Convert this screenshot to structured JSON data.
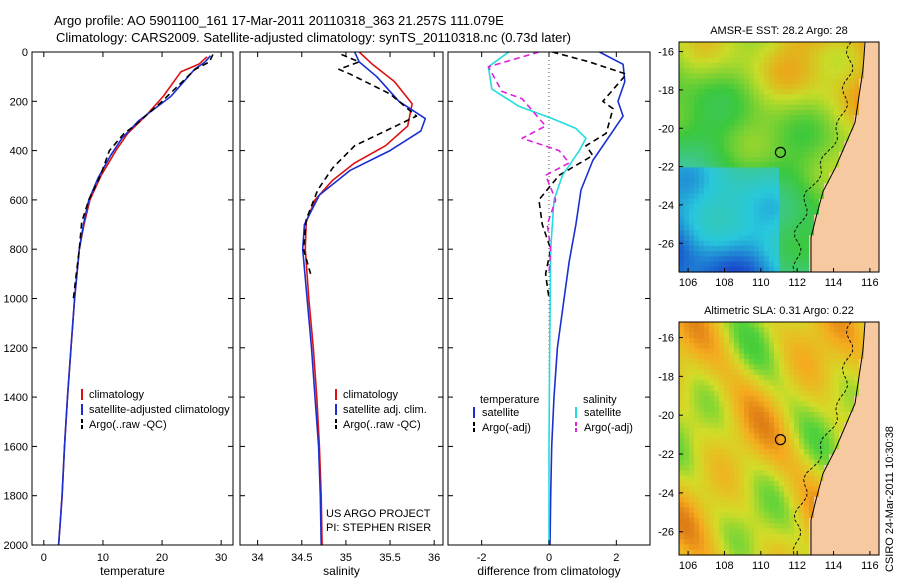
{
  "title_line1": "Argo profile: AO 5901100_161 17-Mar-2011 20110318_363 21.257S 111.079E",
  "title_line2": "Climatology: CARS2009. Satellite-adjusted climatology: synTS_20110318.nc (0.73d later)",
  "credit": "CSIRO 24-Mar-2011 10:30:38",
  "colors": {
    "climatology": "#dd1111",
    "satellite": "#1a2fd0",
    "argo": "#000000",
    "salinity_satellite": "#22dddd",
    "salinity_argo": "#dd22dd",
    "land": "#f7c9a0"
  },
  "chart_data": [
    {
      "type": "line",
      "id": "temperature",
      "xlabel": "temperature",
      "xlim": [
        -2,
        32
      ],
      "ylim": [
        2000,
        0
      ],
      "xticks": [
        0,
        10,
        20,
        30
      ],
      "yticks": [
        0,
        200,
        400,
        600,
        800,
        1000,
        1200,
        1400,
        1600,
        1800,
        2000
      ],
      "legend": [
        "climatology",
        "satellite-adjusted climatology",
        "Argo(..raw -QC)"
      ],
      "series": [
        {
          "name": "climatology",
          "style": "solid",
          "color": "#dd1111",
          "x": [
            27.6,
            26.2,
            23.2,
            20.2,
            17.2,
            14.2,
            12.2,
            9.7,
            7.8,
            6.8,
            6.0,
            5.2,
            4.6,
            4.0,
            3.5,
            3.1,
            2.8,
            2.5
          ],
          "y": [
            20,
            50,
            80,
            180,
            260,
            330,
            400,
            500,
            600,
            700,
            800,
            1000,
            1200,
            1400,
            1600,
            1800,
            1900,
            2000
          ]
        },
        {
          "name": "satellite-adjusted climatology",
          "style": "solid",
          "color": "#1a2fd0",
          "x": [
            28.2,
            27.3,
            25.5,
            21.5,
            16.0,
            13.2,
            11.3,
            9.2,
            7.6,
            6.7,
            6.0,
            5.2,
            4.6,
            4.0,
            3.5,
            3.1,
            2.8,
            2.5
          ],
          "y": [
            15,
            40,
            70,
            180,
            280,
            350,
            420,
            510,
            600,
            700,
            800,
            1000,
            1200,
            1400,
            1600,
            1800,
            1900,
            2000
          ]
        },
        {
          "name": "Argo(..raw -QC)",
          "style": "dashed",
          "color": "#000000",
          "x": [
            28.6,
            28.0,
            25.6,
            20.0,
            15.3,
            13.6,
            11.1,
            9.6,
            7.6,
            6.4,
            6.0,
            5.5,
            5.0
          ],
          "y": [
            10,
            40,
            70,
            200,
            300,
            330,
            400,
            500,
            600,
            690,
            800,
            900,
            1000
          ]
        }
      ]
    },
    {
      "type": "line",
      "id": "salinity",
      "xlabel": "salinity",
      "xlim": [
        33.8,
        36.1
      ],
      "ylim": [
        2000,
        0
      ],
      "xticks": [
        34,
        34.5,
        35,
        35.5,
        36
      ],
      "legend": [
        "climatology",
        "satellite adj. clim.",
        "Argo(..raw -QC)"
      ],
      "annotation": [
        "US ARGO PROJECT",
        "PI: STEPHEN RISER"
      ],
      "series": [
        {
          "name": "climatology",
          "style": "solid",
          "color": "#dd1111",
          "x": [
            35.15,
            35.3,
            35.55,
            35.75,
            35.7,
            35.45,
            35.1,
            34.85,
            34.65,
            34.55,
            34.54,
            34.58,
            34.63,
            34.67,
            34.7,
            34.72,
            34.73
          ],
          "y": [
            0,
            50,
            120,
            210,
            300,
            380,
            450,
            520,
            600,
            690,
            800,
            1000,
            1200,
            1400,
            1600,
            1800,
            2000
          ]
        },
        {
          "name": "satellite adj. clim.",
          "style": "solid",
          "color": "#1a2fd0",
          "x": [
            35.1,
            35.15,
            35.35,
            35.6,
            35.9,
            35.85,
            35.5,
            35.05,
            34.7,
            34.53,
            34.51,
            34.56,
            34.61,
            34.65,
            34.69,
            34.71,
            34.72
          ],
          "y": [
            0,
            40,
            100,
            200,
            270,
            320,
            400,
            480,
            580,
            700,
            800,
            1000,
            1200,
            1400,
            1600,
            1800,
            2000
          ]
        },
        {
          "name": "Argo(..raw -QC)",
          "style": "dashed",
          "color": "#000000",
          "x": [
            34.95,
            35.15,
            34.92,
            35.05,
            35.5,
            35.8,
            35.1,
            34.85,
            34.68,
            34.55,
            34.52,
            34.6
          ],
          "y": [
            10,
            40,
            70,
            90,
            170,
            260,
            380,
            470,
            560,
            680,
            800,
            900
          ]
        }
      ]
    },
    {
      "type": "line",
      "id": "difference",
      "xlabel": "difference from climatology",
      "xlim": [
        -3,
        3
      ],
      "ylim": [
        2000,
        0
      ],
      "xticks": [
        -2,
        0,
        2
      ],
      "legend": [
        "temperature",
        "satellite",
        "Argo(-adj)",
        "salinity",
        "satellite",
        "Argo(-adj)"
      ],
      "series": [
        {
          "name": "temperature satellite",
          "style": "solid",
          "color": "#1a2fd0",
          "x": [
            1.5,
            2.2,
            2.25,
            2.05,
            2.2,
            1.9,
            1.3,
            0.95,
            0.8,
            0.6,
            0.45,
            0.25,
            0.15,
            0.08,
            0.05,
            0.03
          ],
          "y": [
            0,
            50,
            120,
            200,
            260,
            320,
            440,
            560,
            700,
            850,
            1000,
            1200,
            1400,
            1600,
            1800,
            2000
          ]
        },
        {
          "name": "temperature Argo(-adj)",
          "style": "dashed",
          "color": "#000000",
          "x": [
            0.1,
            1.2,
            2.3,
            1.6,
            1.9,
            1.7,
            1.1,
            1.3,
            0.3,
            -0.3,
            -0.2,
            0.05,
            -0.1,
            0.0
          ],
          "y": [
            0,
            40,
            90,
            200,
            230,
            330,
            380,
            420,
            500,
            600,
            700,
            800,
            900,
            1000
          ]
        },
        {
          "name": "salinity satellite",
          "style": "solid",
          "color": "#22dddd",
          "x": [
            -1.2,
            -1.8,
            -1.7,
            -0.9,
            0.1,
            0.8,
            1.1,
            0.9,
            0.4,
            0.15,
            0.05,
            0.02,
            0.0,
            0.0
          ],
          "y": [
            0,
            60,
            150,
            220,
            270,
            310,
            350,
            400,
            500,
            600,
            800,
            1200,
            1600,
            2000
          ]
        },
        {
          "name": "salinity Argo(-adj)",
          "style": "dashed",
          "color": "#dd22dd",
          "x": [
            -0.3,
            -1.8,
            -1.4,
            -0.8,
            -0.1,
            -0.8,
            0.3,
            0.6,
            -0.1,
            0.2,
            -0.05,
            0.05,
            0.0
          ],
          "y": [
            0,
            60,
            160,
            190,
            300,
            350,
            400,
            450,
            500,
            600,
            700,
            800,
            900
          ]
        }
      ]
    },
    {
      "type": "heatmap",
      "id": "sst_map",
      "title": "AMSR-E SST: 28.2  Argo: 28",
      "xlim": [
        105.5,
        116.5
      ],
      "ylim": [
        -27.5,
        -15.5
      ],
      "xticks": [
        106,
        108,
        110,
        112,
        114,
        116
      ],
      "yticks": [
        -16,
        -18,
        -20,
        -22,
        -24,
        -26
      ],
      "marker": {
        "lon": 111.079,
        "lat": -21.257
      }
    },
    {
      "type": "heatmap",
      "id": "sla_map",
      "title": "Altimetric SLA: 0.31  Argo: 0.22",
      "xlim": [
        105.5,
        116.5
      ],
      "ylim": [
        -27.2,
        -15.2
      ],
      "xticks": [
        106,
        108,
        110,
        112,
        114,
        116
      ],
      "yticks": [
        -16,
        -18,
        -20,
        -22,
        -24,
        -26
      ],
      "marker": {
        "lon": 111.079,
        "lat": -21.257
      }
    }
  ]
}
